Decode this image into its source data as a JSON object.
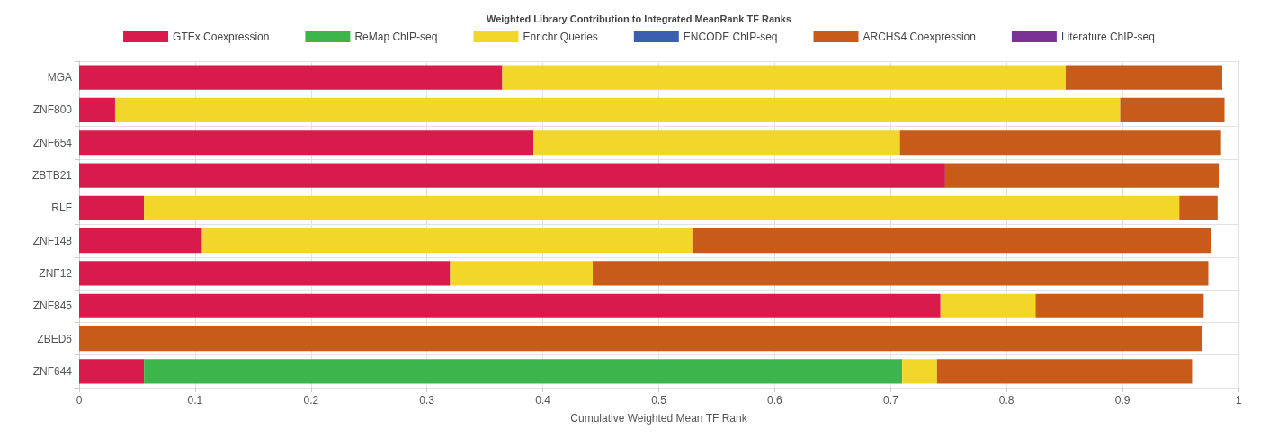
{
  "chart_data": {
    "type": "bar",
    "orientation": "horizontal",
    "stacked": true,
    "title": "Weighted Library Contribution to Integrated MeanRank TF Ranks",
    "xlabel": "Cumulative Weighted Mean TF Rank",
    "categories": [
      "MGA",
      "ZNF800",
      "ZNF654",
      "ZBTB21",
      "RLF",
      "ZNF148",
      "ZNF12",
      "ZNF845",
      "ZBED6",
      "ZNF644"
    ],
    "series": [
      {
        "name": "GTEx Coexpression",
        "color": "#d81b4a",
        "values": [
          0.365,
          0.031,
          0.392,
          0.747,
          0.056,
          0.106,
          0.32,
          0.743,
          0,
          0.056
        ]
      },
      {
        "name": "ReMap ChIP-seq",
        "color": "#3cb54a",
        "values": [
          0,
          0,
          0,
          0,
          0,
          0,
          0,
          0,
          0,
          0.654
        ]
      },
      {
        "name": "Enrichr Queries",
        "color": "#f2d72a",
        "values": [
          0.486,
          0.867,
          0.316,
          0,
          0.893,
          0.423,
          0.123,
          0.082,
          0,
          0.03
        ]
      },
      {
        "name": "ENCODE ChIP-seq",
        "color": "#3a5fb0",
        "values": [
          0,
          0,
          0,
          0,
          0,
          0,
          0,
          0,
          0,
          0
        ]
      },
      {
        "name": "ARCHS4 Coexpression",
        "color": "#c85a1a",
        "values": [
          0.135,
          0.09,
          0.277,
          0.236,
          0.033,
          0.447,
          0.531,
          0.145,
          0.969,
          0.22
        ]
      },
      {
        "name": "Literature ChIP-seq",
        "color": "#7b3294",
        "values": [
          0,
          0,
          0,
          0,
          0,
          0,
          0,
          0,
          0,
          0
        ]
      }
    ],
    "xlim": [
      0,
      1
    ],
    "xticks": [
      0,
      0.1,
      0.2,
      0.3,
      0.4,
      0.5,
      0.6,
      0.7,
      0.8,
      0.9,
      1.0
    ],
    "grid": true,
    "legend": "top"
  }
}
